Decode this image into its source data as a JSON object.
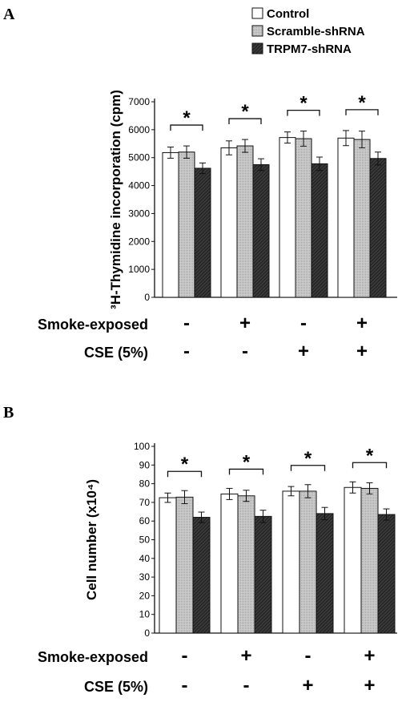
{
  "legend": [
    {
      "label": "Control",
      "fill": "#ffffff"
    },
    {
      "label": "Scramble-shRNA",
      "fill": "#c8c8c8"
    },
    {
      "label": "TRPM7-shRNA",
      "fill": "#2e2e2e"
    }
  ],
  "conditions": {
    "smoke_label": "Smoke-exposed",
    "cse_label": "CSE (5%)"
  },
  "chart_data": [
    {
      "panel": "A",
      "type": "bar",
      "ylabel": "³H-Thymidine incorporation (cpm)",
      "ylim": [
        0,
        7000
      ],
      "yticks": [
        0,
        1000,
        2000,
        3000,
        4000,
        5000,
        6000,
        7000
      ],
      "series_names": [
        "Control",
        "Scramble-shRNA",
        "TRPM7-shRNA"
      ],
      "groups": [
        {
          "smoke": "-",
          "cse": "-",
          "values": [
            5180,
            5200,
            4620
          ],
          "errors": [
            200,
            220,
            190
          ]
        },
        {
          "smoke": "+",
          "cse": "-",
          "values": [
            5350,
            5420,
            4750
          ],
          "errors": [
            250,
            230,
            210
          ]
        },
        {
          "smoke": "-",
          "cse": "+",
          "values": [
            5720,
            5680,
            4780
          ],
          "errors": [
            200,
            270,
            240
          ]
        },
        {
          "smoke": "+",
          "cse": "+",
          "values": [
            5700,
            5650,
            4970
          ],
          "errors": [
            270,
            300,
            230
          ]
        }
      ],
      "significance": [
        "*",
        "*",
        "*",
        "*"
      ]
    },
    {
      "panel": "B",
      "type": "bar",
      "ylabel": "Cell number (x10⁴)",
      "ylim": [
        0,
        100
      ],
      "yticks": [
        0,
        10,
        20,
        30,
        40,
        50,
        60,
        70,
        80,
        90,
        100
      ],
      "series_names": [
        "Control",
        "Scramble-shRNA",
        "TRPM7-shRNA"
      ],
      "groups": [
        {
          "smoke": "-",
          "cse": "-",
          "values": [
            72.5,
            72.8,
            62.0
          ],
          "errors": [
            2.5,
            3.5,
            2.8
          ]
        },
        {
          "smoke": "+",
          "cse": "-",
          "values": [
            74.5,
            73.5,
            62.5
          ],
          "errors": [
            3.0,
            3.0,
            3.3
          ]
        },
        {
          "smoke": "-",
          "cse": "+",
          "values": [
            76.0,
            76.0,
            64.0
          ],
          "errors": [
            2.5,
            3.5,
            3.3
          ]
        },
        {
          "smoke": "+",
          "cse": "+",
          "values": [
            78.0,
            77.5,
            63.5
          ],
          "errors": [
            3.0,
            3.0,
            3.0
          ]
        }
      ],
      "significance": [
        "*",
        "*",
        "*",
        "*"
      ]
    }
  ]
}
